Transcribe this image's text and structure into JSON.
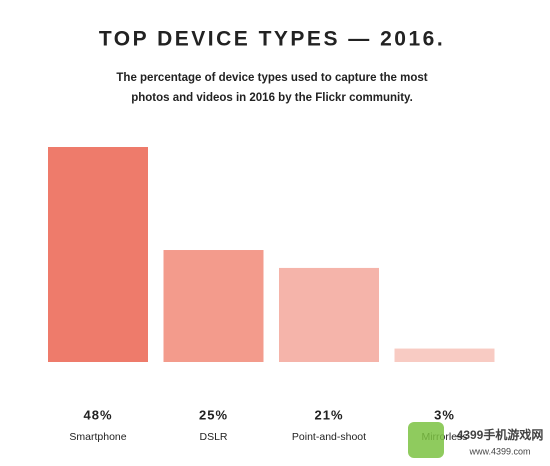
{
  "chart_data": {
    "type": "bar",
    "title": "TOP DEVICE TYPES — 2016.",
    "subtitle": [
      "The percentage of device types used to capture the most",
      "photos and videos in 2016 by the Flickr community."
    ],
    "categories": [
      "Smartphone",
      "DSLR",
      "Point-and-shoot",
      "Mirrorless"
    ],
    "values": [
      48,
      25,
      21,
      3
    ],
    "value_labels": [
      "48%",
      "25%",
      "21%",
      "3%"
    ],
    "colors": [
      "#ee7b6b",
      "#f39b8c",
      "#f5b4aa",
      "#f8cbc3"
    ]
  },
  "watermark": {
    "name": "4399手机游戏网",
    "url": "www.4399.com"
  }
}
